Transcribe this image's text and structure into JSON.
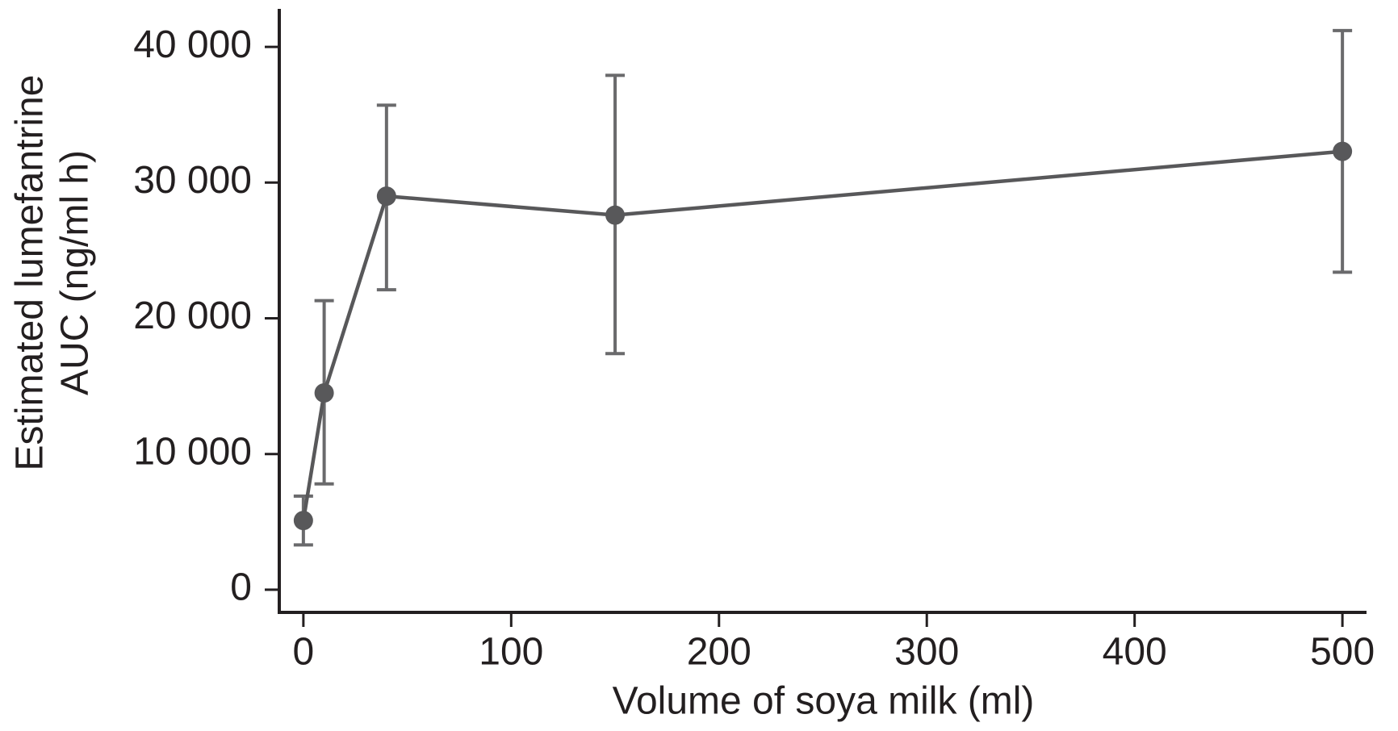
{
  "chart_data": {
    "type": "line",
    "x_label": "Volume of soya milk (ml)",
    "y_label": [
      "Estimated lumefantrine",
      "AUC (ng/ml h)"
    ],
    "x": [
      0,
      10,
      40,
      150,
      500
    ],
    "series": [
      {
        "color": "#58585a",
        "error_color": "#6a6a6c",
        "values": [
          5100,
          14500,
          29000,
          27600,
          32300
        ],
        "lower": [
          3300,
          7800,
          22100,
          17400,
          23400
        ],
        "upper": [
          6900,
          21300,
          35700,
          37900,
          41200
        ]
      }
    ],
    "xlim": [
      -11.6,
      511.6
    ],
    "ylim": [
      -1670,
      42800
    ],
    "xticks": [
      0,
      100,
      200,
      300,
      400,
      500
    ],
    "yticks": [
      0,
      {
        "value": 10000,
        "label": "10 000"
      },
      {
        "value": 20000,
        "label": "20 000"
      },
      {
        "value": 30000,
        "label": "30 000"
      },
      {
        "value": 40000,
        "label": "40 000"
      }
    ]
  }
}
